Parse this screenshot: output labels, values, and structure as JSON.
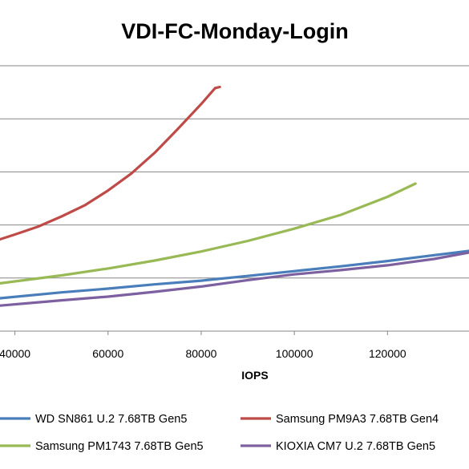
{
  "chart_data": {
    "type": "line",
    "title": "VDI-FC-Monday-Login",
    "xlabel": "IOPS",
    "ylabel": "",
    "x_ticks": [
      "40000",
      "60000",
      "80000",
      "100000",
      "120000"
    ],
    "xlim": [
      36800,
      137500
    ],
    "ylim": [
      0,
      500
    ],
    "grid": true,
    "legend_position": "bottom",
    "series": [
      {
        "name": "WD SN861 U.2 7.68TB Gen5",
        "color": "#4a7ebb",
        "x": [
          36800,
          50000,
          60000,
          70000,
          80000,
          90000,
          100000,
          110000,
          120000,
          130000,
          137500
        ],
        "y": [
          62,
          73,
          80,
          88,
          95,
          104,
          113,
          122,
          132,
          143,
          151
        ]
      },
      {
        "name": "Samsung PM9A3 7.68TB Gen4",
        "color": "#be4b48",
        "x": [
          36800,
          40000,
          45000,
          50000,
          55000,
          60000,
          65000,
          70000,
          75000,
          80000,
          83000,
          84000
        ],
        "y": [
          173,
          182,
          197,
          216,
          237,
          265,
          297,
          336,
          381,
          428,
          458,
          460
        ]
      },
      {
        "name": "Samsung PM1743 7.68TB Gen5",
        "color": "#98b954",
        "x": [
          36800,
          50000,
          60000,
          70000,
          80000,
          90000,
          100000,
          110000,
          120000,
          126000
        ],
        "y": [
          90,
          105,
          118,
          133,
          150,
          170,
          193,
          219,
          253,
          278
        ]
      },
      {
        "name": "KIOXIA CM7 U.2 7.68TB Gen5",
        "color": "#7d60a0",
        "x": [
          36800,
          50000,
          60000,
          70000,
          80000,
          90000,
          100000,
          110000,
          120000,
          130000,
          137500
        ],
        "y": [
          48,
          58,
          65,
          74,
          84,
          96,
          107,
          115,
          124,
          136,
          148
        ]
      }
    ]
  }
}
